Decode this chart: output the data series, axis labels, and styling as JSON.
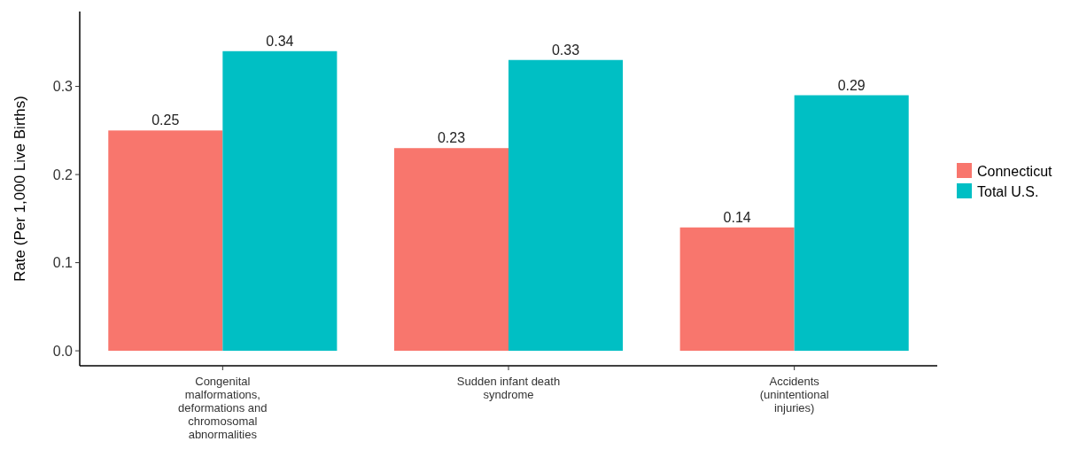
{
  "chart_data": {
    "type": "bar",
    "ylabel": "Rate (Per 1,000 Live Births)",
    "categories": [
      "Congenital malformations, deformations and chromosomal abnormalities",
      "Sudden infant death syndrome",
      "Accidents (unintentional injuries)"
    ],
    "series": [
      {
        "name": "Connecticut",
        "color": "#f8766d",
        "values": [
          0.25,
          0.23,
          0.14
        ]
      },
      {
        "name": "Total U.S.",
        "color": "#00bfc4",
        "values": [
          0.34,
          0.33,
          0.29
        ]
      }
    ],
    "ylim": [
      -0.017,
      0.385
    ],
    "yticks": [
      {
        "value": 0,
        "label": "0.0"
      },
      0.1,
      0.2,
      0.3
    ],
    "data_labels": true,
    "legend": "right",
    "grid": false
  }
}
